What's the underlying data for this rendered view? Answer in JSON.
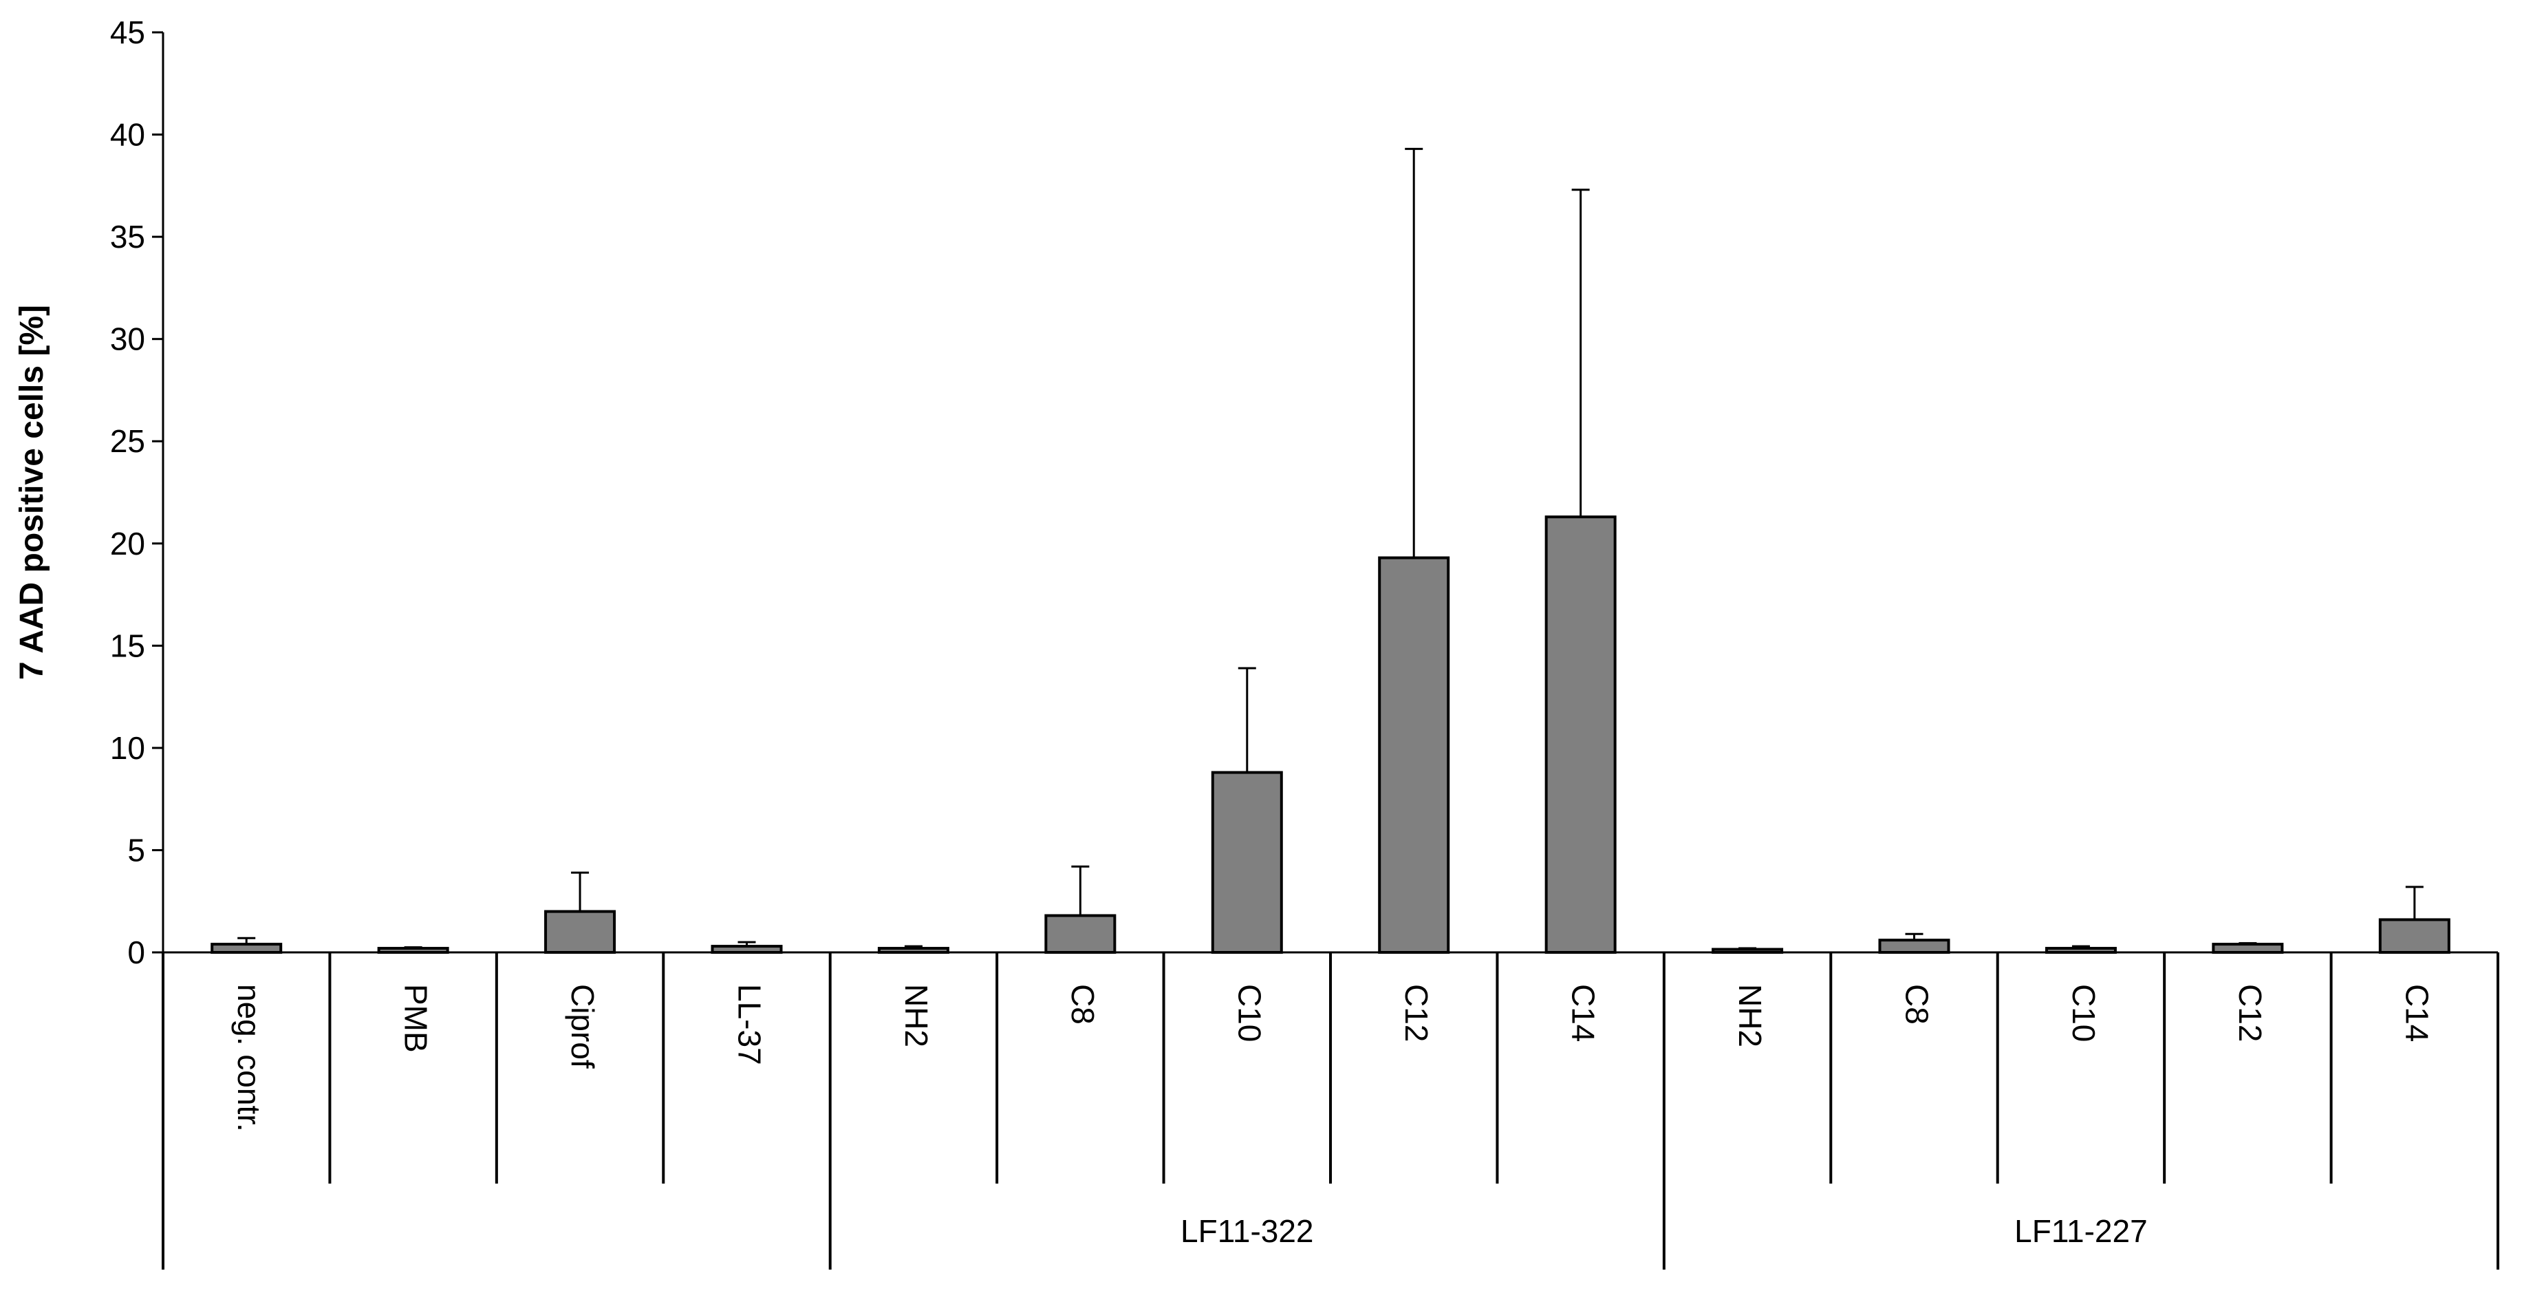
{
  "chart_data": {
    "type": "bar",
    "ylabel": "7 AAD positive cells [%]",
    "xlabel": "",
    "ylim": [
      0,
      45
    ],
    "yticks": [
      0,
      5,
      10,
      15,
      20,
      25,
      30,
      35,
      40,
      45
    ],
    "grid": false,
    "legend": "none",
    "bar_color": "#808080",
    "categories": [
      "neg. contr.",
      "PMB",
      "Ciprof",
      "LL-37",
      "NH2",
      "C8",
      "C10",
      "C12",
      "C14",
      "NH2",
      "C8",
      "C10",
      "C12",
      "C14"
    ],
    "groups": [
      {
        "label": "",
        "count": 4
      },
      {
        "label": "LF11-322",
        "count": 5
      },
      {
        "label": "LF11-227",
        "count": 5
      }
    ],
    "series": [
      {
        "values": [
          0.4,
          0.2,
          2.0,
          0.3,
          0.2,
          1.8,
          8.8,
          19.3,
          21.3,
          0.15,
          0.6,
          0.2,
          0.4,
          1.6
        ],
        "errors": [
          0.3,
          0.05,
          1.9,
          0.2,
          0.1,
          2.4,
          5.1,
          20.0,
          16.0,
          0.05,
          0.3,
          0.1,
          0.05,
          1.6
        ]
      }
    ]
  }
}
